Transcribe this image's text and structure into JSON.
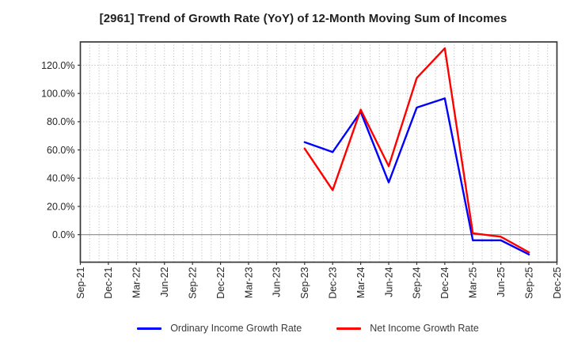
{
  "chart_data": {
    "type": "line",
    "title": "[2961]  Trend of Growth Rate (YoY) of 12-Month Moving Sum of Incomes",
    "x_tick_labels": [
      "Sep-21",
      "Dec-21",
      "Mar-22",
      "Jun-22",
      "Sep-22",
      "Dec-22",
      "Mar-23",
      "Jun-23",
      "Sep-23",
      "Dec-23",
      "Mar-24",
      "Jun-24",
      "Sep-24",
      "Dec-24",
      "Mar-25",
      "Jun-25",
      "Sep-25",
      "Dec-25"
    ],
    "x_tick_months": [
      0,
      3,
      6,
      9,
      12,
      15,
      18,
      21,
      24,
      27,
      30,
      33,
      36,
      39,
      42,
      45,
      48,
      51
    ],
    "xlim_months": [
      0,
      51
    ],
    "minor_x_grid_interval_months": 1,
    "y_tick_labels": [
      "0.0%",
      "20.0%",
      "40.0%",
      "60.0%",
      "80.0%",
      "100.0%",
      "120.0%"
    ],
    "y_tick_values": [
      0,
      20,
      40,
      60,
      80,
      100,
      120
    ],
    "ylim": [
      -19.5,
      136.5
    ],
    "grid": true,
    "legend_position": "bottom",
    "series": [
      {
        "name": "Ordinary Income Growth Rate",
        "color": "#0000ff",
        "x_labels": [
          "Sep-23",
          "Dec-23",
          "Mar-24",
          "Jun-24",
          "Sep-24",
          "Dec-24",
          "Mar-25",
          "Jun-25",
          "Sep-25"
        ],
        "x_months": [
          24,
          27,
          30,
          33,
          36,
          39,
          42,
          45,
          48
        ],
        "values": [
          65.5,
          58.5,
          87,
          37,
          90,
          96.5,
          -4,
          -4,
          -14
        ]
      },
      {
        "name": "Net Income Growth Rate",
        "color": "#ff0000",
        "x_labels": [
          "Sep-23",
          "Dec-23",
          "Mar-24",
          "Jun-24",
          "Sep-24",
          "Dec-24",
          "Mar-25",
          "Jun-25",
          "Sep-25"
        ],
        "x_months": [
          24,
          27,
          30,
          33,
          36,
          39,
          42,
          45,
          48
        ],
        "values": [
          61,
          31.5,
          88.5,
          48.5,
          111,
          132,
          1,
          -1.5,
          -12.5
        ]
      }
    ]
  },
  "colors": {
    "background": "#ffffff",
    "grid": "#b4b4b4",
    "zero_line": "#8a8a8a",
    "frame": "#383838",
    "tick_text": "#262626",
    "legend_text": "#3a3a3a"
  }
}
